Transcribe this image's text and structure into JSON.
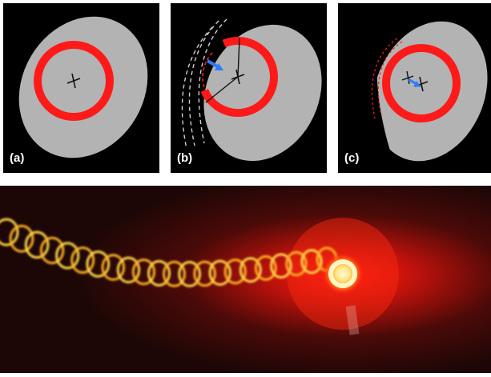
{
  "panels": [
    {
      "label": "(a)"
    },
    {
      "label": "(b)"
    },
    {
      "label": "(c)"
    }
  ],
  "colors": {
    "background": "#000000",
    "ellipse": "#b3b3b3",
    "ring": "#ff1a1a",
    "arrow": "#2f7bff",
    "dashed_arcs": "#cfcfcf",
    "crosshair": "#111111"
  },
  "photo": {
    "description_icon": "laser-spiral-trail-photo"
  }
}
